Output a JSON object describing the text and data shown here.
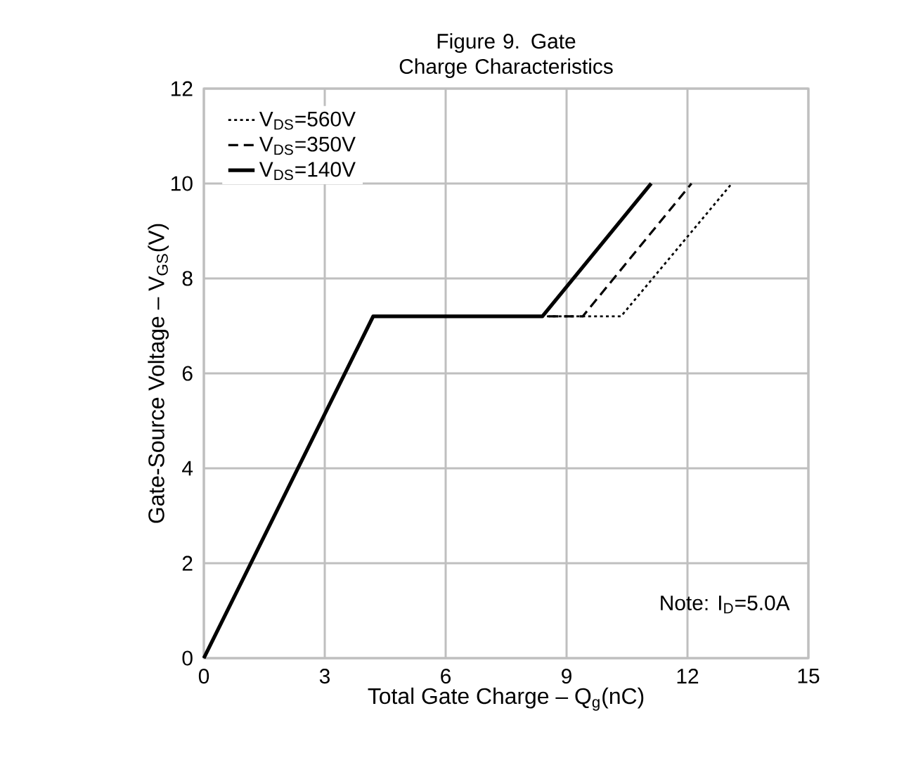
{
  "chart_data": {
    "type": "line",
    "title": "Figure 9. Gate Charge Characteristics",
    "xlabel": "Total Gate Charge – Q$_{g}$(nC)",
    "ylabel": "Gate-Source Voltage – V$_{GS}$(V)",
    "xlim": [
      0,
      15
    ],
    "ylim": [
      0,
      12
    ],
    "xticks": [
      0,
      3,
      6,
      9,
      12,
      15
    ],
    "yticks": [
      0,
      2,
      4,
      6,
      8,
      10,
      12
    ],
    "grid": true,
    "legend": "top left",
    "annotations": [
      "Note: I$_{D}$=5.0A"
    ],
    "series": [
      {
        "name": "V$_{DS}$=560V",
        "color": "#000000",
        "line_style": "dotted",
        "x": [
          0,
          4.2,
          10.35,
          13.1
        ],
        "values": [
          0,
          7.2,
          7.2,
          10
        ]
      },
      {
        "name": "V$_{DS}$=350V",
        "color": "#000000",
        "line_style": "dashed",
        "x": [
          0,
          4.2,
          9.4,
          12.1
        ],
        "values": [
          0,
          7.2,
          7.2,
          10
        ]
      },
      {
        "name": "V$_{DS}$=140V",
        "color": "#000000",
        "line_style": "solid",
        "x": [
          0,
          4.2,
          8.4,
          11.1
        ],
        "values": [
          0,
          7.2,
          7.2,
          10
        ]
      }
    ]
  }
}
